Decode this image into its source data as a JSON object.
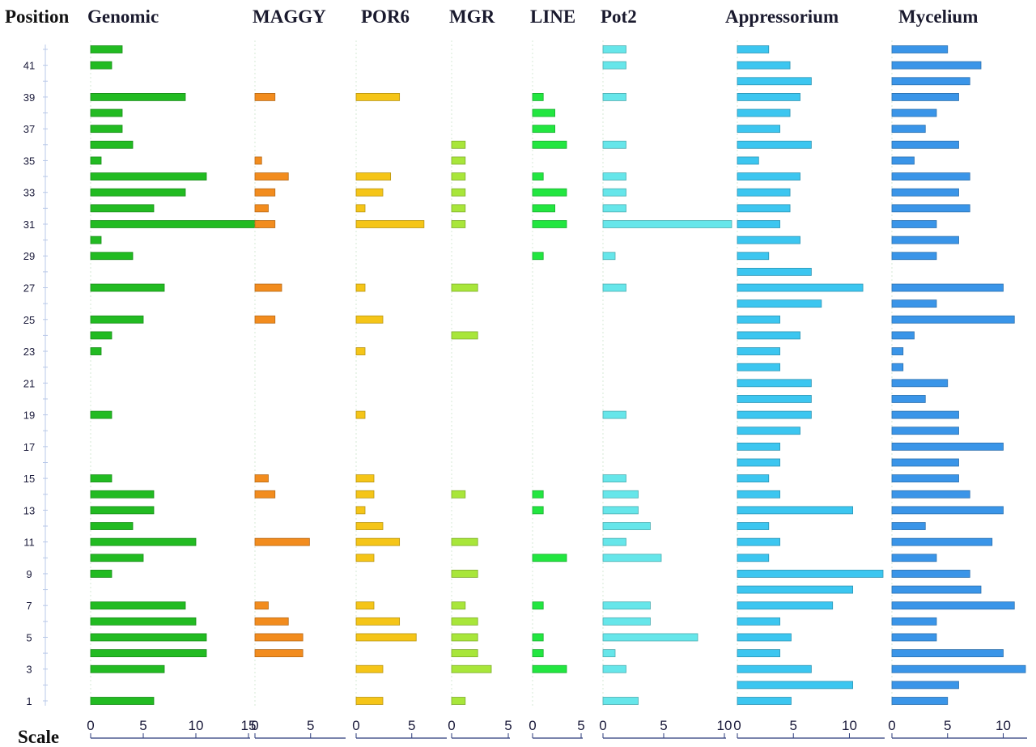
{
  "position_label": "Position",
  "scale_label": "Scale",
  "chart_data": {
    "type": "bar",
    "orientation": "horizontal",
    "positions": [
      1,
      2,
      3,
      4,
      5,
      6,
      7,
      8,
      9,
      10,
      11,
      12,
      13,
      14,
      15,
      16,
      17,
      18,
      19,
      20,
      21,
      22,
      23,
      24,
      25,
      26,
      27,
      28,
      29,
      30,
      31,
      32,
      33,
      34,
      35,
      36,
      37,
      38,
      39,
      40,
      41,
      42
    ],
    "position_tick_labels": [
      "1",
      "3",
      "5",
      "7",
      "9",
      "11",
      "13",
      "15",
      "17",
      "19",
      "21",
      "23",
      "25",
      "27",
      "29",
      "31",
      "33",
      "35",
      "37",
      "39",
      "41"
    ],
    "panels": [
      {
        "name": "Genomic",
        "color": "#22bb22",
        "scale_max": 15,
        "ticks": [
          "0",
          "5",
          "10",
          "15"
        ],
        "values": [
          6,
          0,
          7,
          11,
          11,
          10,
          9,
          0,
          2,
          5,
          10,
          4,
          6,
          6,
          2,
          0,
          0,
          0,
          2,
          0,
          0,
          0,
          1,
          2,
          5,
          0,
          7,
          0,
          4,
          1,
          16,
          6,
          9,
          11,
          1,
          4,
          3,
          3,
          9,
          0,
          2,
          3
        ]
      },
      {
        "name": "MAGGY",
        "color": "#f28c1e",
        "scale_max": 8,
        "ticks": [
          "0",
          "5"
        ],
        "values": [
          0,
          0,
          0,
          4.3,
          4.3,
          3,
          1.2,
          0,
          0,
          0,
          4.9,
          0,
          0,
          1.8,
          1.2,
          0,
          0,
          0,
          0,
          0,
          0,
          0,
          0,
          0,
          1.8,
          0,
          2.4,
          0,
          0,
          0,
          1.8,
          1.2,
          1.8,
          3,
          0.6,
          0,
          0,
          0,
          1.8,
          0,
          0,
          0
        ]
      },
      {
        "name": "POR6",
        "color": "#f5c518",
        "scale_max": 8,
        "ticks": [
          "0",
          "5"
        ],
        "values": [
          2.4,
          0,
          2.4,
          0,
          5.4,
          3.9,
          1.6,
          0,
          0,
          1.6,
          3.9,
          2.4,
          0.8,
          1.6,
          1.6,
          0,
          0,
          0,
          0.8,
          0,
          0,
          0,
          0.8,
          0,
          2.4,
          0,
          0.8,
          0,
          0,
          0,
          6.1,
          0.8,
          2.4,
          3.1,
          0,
          0,
          0,
          0,
          3.9,
          0,
          0,
          0
        ]
      },
      {
        "name": "MGR",
        "color": "#a8e63a",
        "scale_max": 5,
        "ticks": [
          "0",
          "5"
        ],
        "values": [
          1.2,
          0,
          3.5,
          2.3,
          2.3,
          2.3,
          1.2,
          0,
          2.3,
          0,
          2.3,
          0,
          0,
          1.2,
          0,
          0,
          0,
          0,
          0,
          0,
          0,
          0,
          0,
          2.3,
          0,
          0,
          2.3,
          0,
          0,
          0,
          1.2,
          1.2,
          1.2,
          1.2,
          1.2,
          1.2,
          0,
          0,
          0,
          0,
          0,
          0
        ]
      },
      {
        "name": "LINE",
        "color": "#22e640",
        "scale_max": 5,
        "ticks": [
          "0",
          "5"
        ],
        "values": [
          0,
          0,
          3.5,
          1.1,
          1.1,
          0,
          1.1,
          0,
          0,
          3.5,
          0,
          0,
          1.1,
          1.1,
          0,
          0,
          0,
          0,
          0,
          0,
          0,
          0,
          0,
          0,
          0,
          0,
          0,
          0,
          1.1,
          0,
          3.5,
          2.3,
          3.5,
          1.1,
          0,
          3.5,
          2.3,
          2.3,
          1.1,
          0,
          0,
          0
        ]
      },
      {
        "name": "Pot2",
        "color": "#66e6ea",
        "scale_max": 10,
        "ticks": [
          "0",
          "5",
          "10"
        ],
        "values": [
          2.9,
          0,
          1.9,
          1,
          7.8,
          3.9,
          3.9,
          0,
          0,
          4.8,
          1.9,
          3.9,
          2.9,
          2.9,
          1.9,
          0,
          0,
          0,
          1.9,
          0,
          0,
          0,
          0,
          0,
          0,
          0,
          1.9,
          0,
          1,
          0,
          10.6,
          1.9,
          1.9,
          1.9,
          0,
          1.9,
          0,
          0,
          1.9,
          0,
          1.9,
          1.9
        ]
      },
      {
        "name": "Appressorium",
        "color": "#3cc6f0",
        "scale_max": 13,
        "ticks": [
          "0",
          "5",
          "10"
        ],
        "values": [
          4.8,
          10.3,
          6.6,
          3.8,
          4.8,
          3.8,
          8.5,
          10.3,
          13,
          2.8,
          3.8,
          2.8,
          10.3,
          3.8,
          2.8,
          3.8,
          3.8,
          5.6,
          6.6,
          6.6,
          6.6,
          3.8,
          3.8,
          5.6,
          3.8,
          7.5,
          11.2,
          6.6,
          2.8,
          5.6,
          3.8,
          4.7,
          4.7,
          5.6,
          1.9,
          6.6,
          3.8,
          4.7,
          5.6,
          6.6,
          4.7,
          2.8
        ]
      },
      {
        "name": "Mycelium",
        "color": "#3a95e8",
        "scale_max": 12,
        "ticks": [
          "0",
          "5",
          "10"
        ],
        "values": [
          5,
          6,
          12,
          10,
          4,
          4,
          11,
          8,
          7,
          4,
          9,
          3,
          10,
          7,
          6,
          6,
          10,
          6,
          6,
          3,
          5,
          1,
          1,
          2,
          11,
          4,
          10,
          0,
          4,
          6,
          4,
          7,
          6,
          7,
          2,
          6,
          3,
          4,
          6,
          7,
          8,
          5
        ]
      }
    ]
  }
}
